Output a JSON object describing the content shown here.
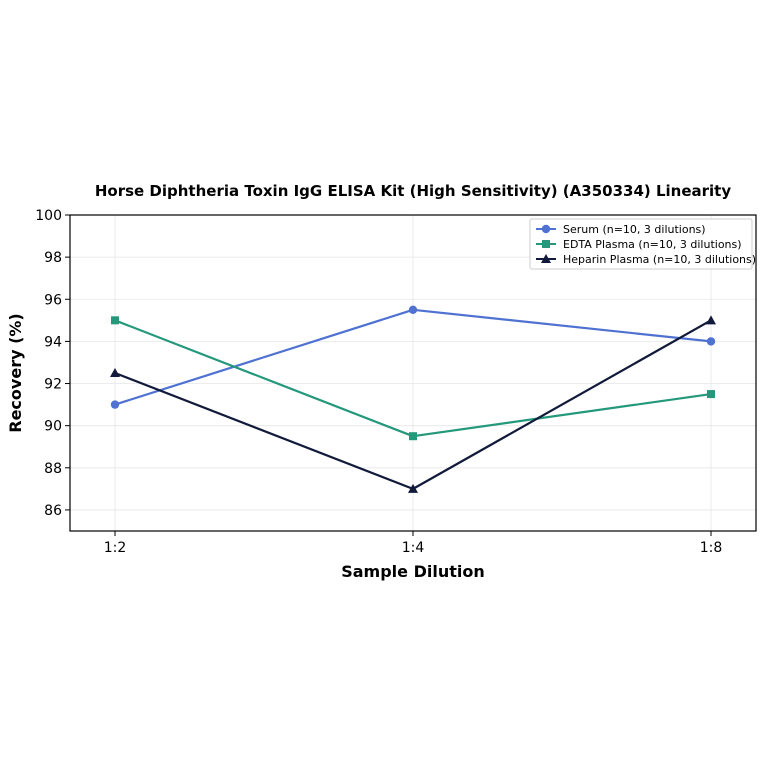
{
  "chart_data": {
    "type": "line",
    "title": "Horse Diphtheria Toxin IgG ELISA Kit (High Sensitivity) (A350334) Linearity",
    "xlabel": "Sample Dilution",
    "ylabel": "Recovery (%)",
    "categories": [
      "1:2",
      "1:4",
      "1:8"
    ],
    "ylim": [
      85,
      100
    ],
    "yticks": [
      86,
      88,
      90,
      92,
      94,
      96,
      98,
      100
    ],
    "grid": true,
    "legend_position": "top-right",
    "series": [
      {
        "name": "Serum (n=10, 3 dilutions)",
        "values": [
          91,
          95.5,
          94
        ],
        "color": "#4f72d2",
        "marker": "circle"
      },
      {
        "name": "EDTA Plasma (n=10, 3 dilutions)",
        "values": [
          95,
          89.5,
          91.5
        ],
        "color": "#23987a",
        "marker": "square"
      },
      {
        "name": "Heparin Plasma (n=10, 3 dilutions)",
        "values": [
          92.5,
          87,
          95
        ],
        "color": "#111a3a",
        "marker": "triangle"
      }
    ]
  }
}
